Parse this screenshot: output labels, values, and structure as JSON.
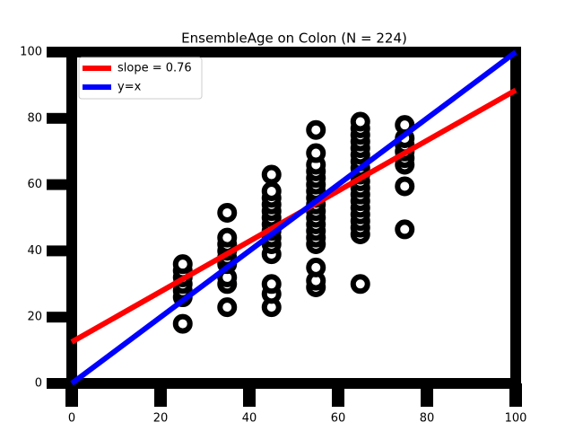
{
  "chart_data": {
    "type": "scatter",
    "title": "EnsembleAge on Colon (N = 224)",
    "xlim": [
      0,
      100
    ],
    "ylim": [
      0,
      100
    ],
    "xticks": [
      0,
      20,
      40,
      60,
      80,
      100
    ],
    "yticks": [
      0,
      20,
      40,
      60,
      80,
      100
    ],
    "legend": "upper left",
    "points": {
      "color": "#000000",
      "x": [
        25,
        25,
        25,
        25,
        25,
        25,
        25,
        35,
        35,
        35,
        35,
        35,
        35,
        35,
        35,
        35,
        45,
        45,
        45,
        45,
        45,
        45,
        45,
        45,
        45,
        45,
        45,
        45,
        45,
        45,
        55,
        55,
        55,
        55,
        55,
        55,
        55,
        55,
        55,
        55,
        55,
        55,
        55,
        55,
        55,
        55,
        55,
        55,
        65,
        65,
        65,
        65,
        65,
        65,
        65,
        65,
        65,
        65,
        65,
        65,
        65,
        65,
        65,
        65,
        65,
        65,
        65,
        75,
        75,
        75,
        75,
        75,
        75,
        75,
        75
      ],
      "values": [
        18,
        26,
        28,
        30,
        32,
        34,
        36,
        23,
        30,
        32,
        36,
        38,
        40,
        42,
        44,
        51.5,
        23,
        27,
        30,
        39,
        42,
        44,
        46,
        48,
        50,
        52,
        54,
        56,
        58,
        63,
        29,
        31,
        35,
        42,
        44,
        46,
        48,
        50,
        52,
        54,
        56,
        58,
        60,
        62,
        64,
        66,
        69.5,
        76.5,
        30,
        45,
        47,
        49,
        51,
        53,
        55,
        57,
        59,
        61,
        63,
        65,
        67,
        69,
        71,
        73,
        75,
        77,
        79,
        46.5,
        59.5,
        66,
        68,
        70,
        72,
        74,
        78
      ]
    },
    "series": [
      {
        "name": "slope = 0.76",
        "color": "#ff0000",
        "x": [
          0,
          100
        ],
        "values": [
          12.5,
          88.5
        ]
      },
      {
        "name": "y=x",
        "color": "#0000ff",
        "x": [
          0,
          100
        ],
        "values": [
          0,
          100
        ]
      }
    ]
  }
}
